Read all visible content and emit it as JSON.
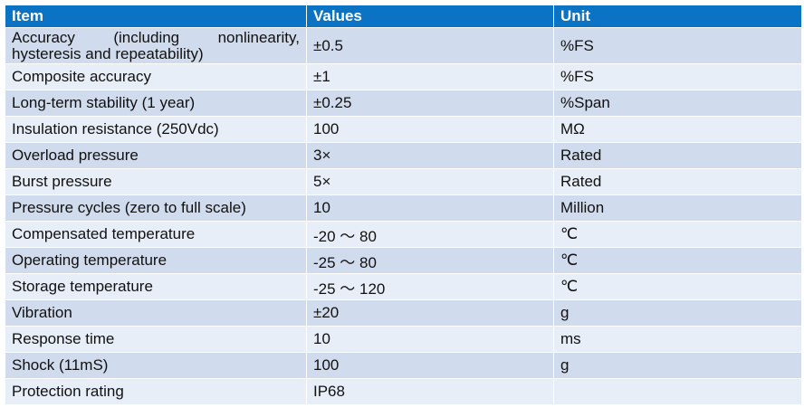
{
  "table": {
    "headers": [
      "Item",
      "Values",
      "Unit"
    ],
    "rows": [
      {
        "item": "Accuracy (including nonlinearity, hysteresis and repeatability)",
        "value": "±0.5",
        "unit": "%FS"
      },
      {
        "item": "Composite accuracy",
        "value": "±1",
        "unit": "%FS"
      },
      {
        "item": "Long-term stability (1 year)",
        "value": "±0.25",
        "unit": "%Span"
      },
      {
        "item": "Insulation resistance (250Vdc)",
        "value": "100",
        "unit": "MΩ"
      },
      {
        "item": "Overload pressure",
        "value": "3×",
        "unit": "Rated"
      },
      {
        "item": "Burst pressure",
        "value": "5×",
        "unit": "Rated"
      },
      {
        "item": "Pressure cycles (zero to full scale)",
        "value": "10",
        "unit": "Million"
      },
      {
        "item": "Compensated temperature",
        "value": "-20 ～ 80",
        "unit": "℃"
      },
      {
        "item": "Operating temperature",
        "value": "-25 ～ 80",
        "unit": "℃"
      },
      {
        "item": "Storage temperature",
        "value": "-25 ～ 120",
        "unit": "℃"
      },
      {
        "item": "Vibration",
        "value": "±20",
        "unit": "g"
      },
      {
        "item": "Response time",
        "value": "10",
        "unit": "ms"
      },
      {
        "item": "Shock (11mS)",
        "value": "100",
        "unit": "g"
      },
      {
        "item": "Protection rating",
        "value": "IP68",
        "unit": ""
      }
    ]
  },
  "colors": {
    "header_bg": "#0b73c4",
    "header_text": "#ffffff",
    "row_odd_bg": "#d0dbed",
    "row_even_bg": "#e8eef7"
  }
}
